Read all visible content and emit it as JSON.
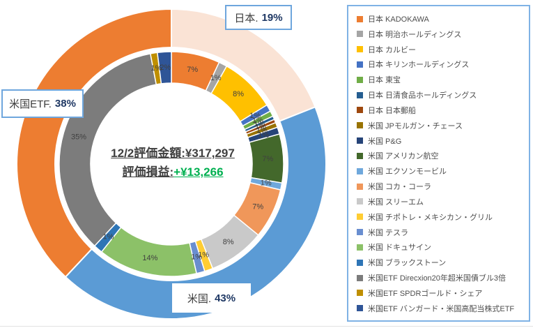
{
  "chart_data": {
    "type": "pie",
    "subtype": "double-ring-donut",
    "legend_position": "right",
    "grid": false,
    "center_text": {
      "line1_label": "12/2評価金額:",
      "line1_value": "¥317,297",
      "line2_label": "評価損益:",
      "line2_value": "+¥13,266",
      "line2_value_color": "#00B050"
    },
    "outer_ring": {
      "segments": [
        {
          "label": "日本",
          "value": 19,
          "color": "#FAE3D5"
        },
        {
          "label": "米国",
          "value": 43,
          "color": "#5B9BD5"
        },
        {
          "label": "米国ETF",
          "value": 38,
          "color": "#ED7D31"
        }
      ]
    },
    "inner_ring": {
      "segments": [
        {
          "label": "日本 KADOKAWA",
          "value": 7.0,
          "display": "7%",
          "color": "#ED7D31"
        },
        {
          "label": "日本 明治ホールディングス",
          "value": 1.2,
          "display": "1%",
          "color": "#A5A5A5"
        },
        {
          "label": "日本 カルビー",
          "value": 8.0,
          "display": "8%",
          "color": "#FFC000"
        },
        {
          "label": "日本 キリンホールディングス",
          "value": 1.0,
          "display": "1%",
          "color": "#4472C4"
        },
        {
          "label": "日本 東宝",
          "value": 0.8,
          "display": "1%",
          "color": "#70AD47"
        },
        {
          "label": "日本 日清食品ホールディングス",
          "value": 0.5,
          "display": "1%",
          "color": "#255E91"
        },
        {
          "label": "日本 日本郵船",
          "value": 0.5,
          "display": "1%",
          "color": "#9E480E"
        },
        {
          "label": "米国 JPモルガン・チェース",
          "value": 0.7,
          "display": "1%",
          "color": "#997300"
        },
        {
          "label": "米国 P&G",
          "value": 1.0,
          "display": "1%",
          "color": "#264478"
        },
        {
          "label": "米国 アメリカン航空",
          "value": 7.0,
          "display": "7%",
          "color": "#43682B"
        },
        {
          "label": "米国 エクソンモービル",
          "value": 1.0,
          "display": "1%",
          "color": "#6FA8DC"
        },
        {
          "label": "米国 コカ・コーラ",
          "value": 7.2,
          "display": "7%",
          "color": "#F0975A"
        },
        {
          "label": "米国 スリーエム",
          "value": 8.1,
          "display": "8%",
          "color": "#C9C9C9"
        },
        {
          "label": "米国 チポトレ・メキシカン・グリル",
          "value": 1.2,
          "display": "1%",
          "color": "#FFCD33"
        },
        {
          "label": "米国 テスラ",
          "value": 1.2,
          "display": "1%",
          "color": "#698ED0"
        },
        {
          "label": "米国 ドキュサイン",
          "value": 14.3,
          "display": "14%",
          "color": "#8CC168"
        },
        {
          "label": "米国 ブラックストーン",
          "value": 1.3,
          "display": "1%",
          "color": "#2E75B6"
        },
        {
          "label": "米国ETF Direcxion20年超米国債ブル3倍",
          "value": 35.0,
          "display": "35%",
          "color": "#7C7C7C"
        },
        {
          "label": "米国ETF SPDRゴールド・シェア",
          "value": 1.0,
          "display": "1%",
          "color": "#BF8F00"
        },
        {
          "label": "米国ETF バンガード・米国高配当株式ETF",
          "value": 2.0,
          "display": "2%",
          "color": "#2F5597"
        }
      ]
    },
    "callouts": [
      {
        "name": "日本.",
        "pct": "19%"
      },
      {
        "name": "米国ETF.",
        "pct": "38%"
      },
      {
        "name": "米国.",
        "pct": "43%"
      }
    ],
    "colors": {
      "separator": "#FFFFFF",
      "label_text": "#404040",
      "callout_border": "#6EA6DD",
      "legend_border": "#7FB2E5",
      "profit_green": "#00B050"
    }
  }
}
